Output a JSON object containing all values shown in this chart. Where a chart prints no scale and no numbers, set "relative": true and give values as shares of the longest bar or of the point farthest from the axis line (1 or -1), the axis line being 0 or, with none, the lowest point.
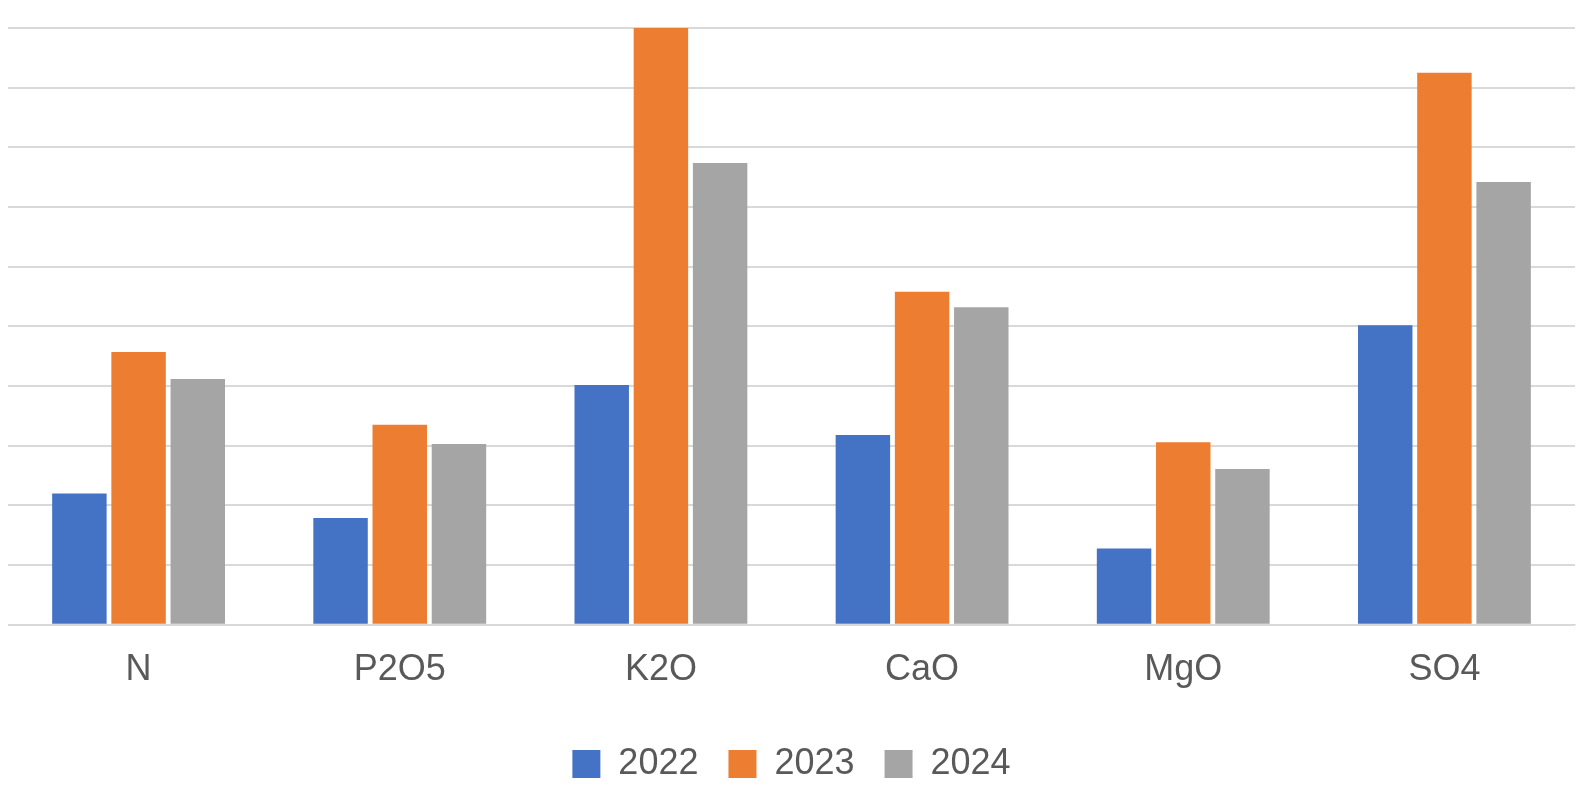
{
  "chart_data": {
    "type": "bar",
    "relative": true,
    "grid": "y",
    "legend": "bottom",
    "categories": [
      "N",
      "P2O5",
      "K2O",
      "CaO",
      "MgO",
      "SO4"
    ],
    "series": [
      {
        "name": "2022",
        "color": "#4472c4",
        "values": [
          0.22,
          0.179,
          0.402,
          0.318,
          0.128,
          0.502
        ]
      },
      {
        "name": "2023",
        "color": "#ed7d31",
        "values": [
          0.457,
          0.335,
          1,
          0.558,
          0.306,
          0.925
        ]
      },
      {
        "name": "2024",
        "color": "#a5a5a5",
        "values": [
          0.412,
          0.303,
          0.774,
          0.532,
          0.261,
          0.742
        ]
      }
    ]
  }
}
